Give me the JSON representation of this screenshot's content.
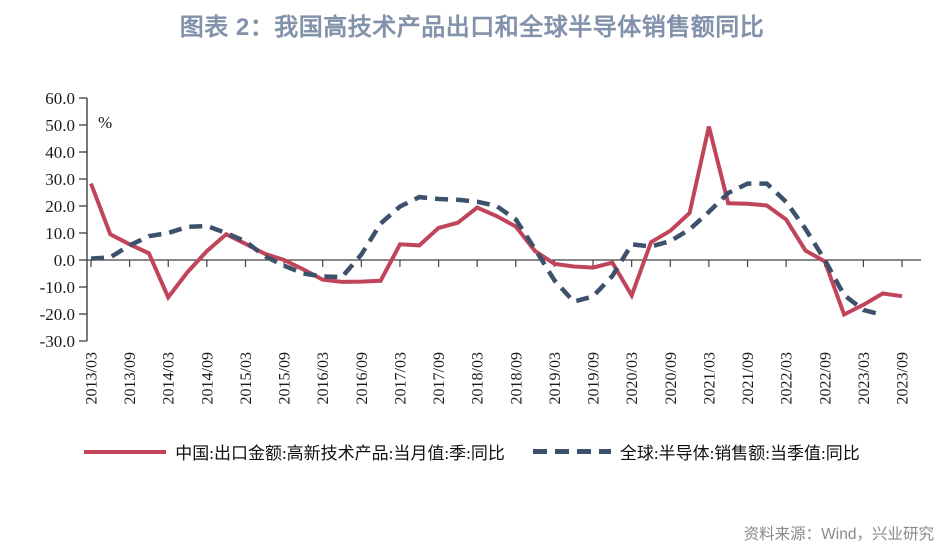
{
  "chart_data": {
    "type": "line",
    "title": "图表 2：我国高技术产品出口和全球半导体销售额同比",
    "unit_label": "%",
    "ylim": [
      -30,
      60
    ],
    "ytick_labels": [
      "60.0",
      "50.0",
      "40.0",
      "30.0",
      "20.0",
      "10.0",
      "0.0",
      "-10.0",
      "-20.0",
      "-30.0"
    ],
    "grid": false,
    "legend_position": "bottom",
    "x_label_every": 2,
    "x": [
      "2013/03",
      "2013/06",
      "2013/09",
      "2013/12",
      "2014/03",
      "2014/06",
      "2014/09",
      "2014/12",
      "2015/03",
      "2015/06",
      "2015/09",
      "2015/12",
      "2016/03",
      "2016/06",
      "2016/09",
      "2016/12",
      "2017/03",
      "2017/06",
      "2017/09",
      "2017/12",
      "2018/03",
      "2018/06",
      "2018/09",
      "2018/12",
      "2019/03",
      "2019/06",
      "2019/09",
      "2019/12",
      "2020/03",
      "2020/06",
      "2020/09",
      "2020/12",
      "2021/03",
      "2021/06",
      "2021/09",
      "2021/12",
      "2022/03",
      "2022/06",
      "2022/09",
      "2022/12",
      "2023/03",
      "2023/06",
      "2023/09"
    ],
    "series": [
      {
        "name": "中国:出口金额:高新技术产品:当月值:季:同比",
        "style": "solid",
        "color": "#c1455a",
        "values": [
          28.3,
          9.5,
          5.8,
          2.5,
          -13.8,
          -4.5,
          3.3,
          9.5,
          6.0,
          2.3,
          0.0,
          -3.5,
          -7.3,
          -8.1,
          -8.0,
          -7.7,
          5.8,
          5.4,
          11.9,
          13.8,
          19.4,
          16.3,
          12.4,
          3.3,
          -1.4,
          -2.4,
          -2.8,
          -1.0,
          -13.1,
          6.6,
          10.8,
          17.4,
          49.4,
          21.0,
          20.8,
          20.2,
          15.0,
          3.5,
          -0.5,
          -20.2,
          -16.6,
          -12.4,
          -13.4
        ]
      },
      {
        "name": "全球:半导体:销售额:当季值:同比",
        "style": "dashed",
        "color": "#3d516b",
        "values": [
          0.5,
          1.0,
          5.4,
          8.8,
          10.0,
          12.3,
          12.6,
          10.0,
          6.9,
          1.4,
          -2.1,
          -5.0,
          -6.1,
          -6.3,
          2.0,
          13.5,
          19.8,
          23.3,
          22.6,
          22.3,
          21.6,
          20.0,
          15.0,
          4.0,
          -7.5,
          -15.4,
          -13.5,
          -5.9,
          5.8,
          5.0,
          7.0,
          11.3,
          17.8,
          24.8,
          28.3,
          28.3,
          21.5,
          11.5,
          0.0,
          -13.0,
          -18.5,
          -20.4,
          null
        ]
      }
    ]
  },
  "source_note": "资料来源：Wind，兴业研究",
  "colors": {
    "title": "#8292ab",
    "axis": "#404040",
    "text": "#1a1a1a",
    "source": "#8a8a8a",
    "background": "#ffffff"
  }
}
